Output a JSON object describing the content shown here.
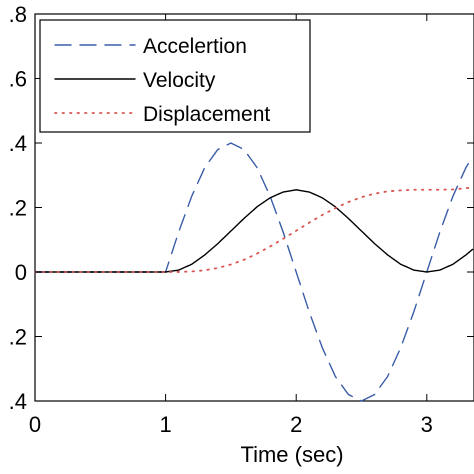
{
  "chart_data": {
    "type": "line",
    "xlabel": "Time (sec)",
    "ylabel": "",
    "xlim": [
      0,
      3.35
    ],
    "ylim": [
      -0.4,
      0.8
    ],
    "x_ticks": [
      0,
      1,
      2,
      3
    ],
    "x_tick_labels": [
      "0",
      "1",
      "2",
      "3"
    ],
    "y_ticks": [
      0.8,
      0.6,
      0.4,
      0.2,
      0,
      -0.2,
      -0.4
    ],
    "y_tick_labels": [
      ".8",
      ".6",
      ".4",
      ".2",
      "0",
      ".2",
      ".4"
    ],
    "grid": false,
    "legend_position": "top-left",
    "series": [
      {
        "name": "Accelertion",
        "color": "#3a5da8",
        "style": "dashed",
        "x": [
          0,
          0.5,
          1.0,
          1.1,
          1.2,
          1.3,
          1.4,
          1.5,
          1.6,
          1.7,
          1.8,
          1.9,
          2.0,
          2.1,
          2.2,
          2.3,
          2.4,
          2.5,
          2.6,
          2.7,
          2.8,
          2.9,
          3.0,
          3.1,
          3.2,
          3.3,
          3.35
        ],
        "y": [
          0,
          0,
          0,
          0.124,
          0.235,
          0.324,
          0.38,
          0.4,
          0.38,
          0.324,
          0.235,
          0.124,
          0,
          -0.124,
          -0.235,
          -0.324,
          -0.38,
          -0.4,
          -0.38,
          -0.324,
          -0.235,
          -0.124,
          0,
          0.124,
          0.235,
          0.324,
          0.357
        ]
      },
      {
        "name": "Velocity",
        "color": "#000000",
        "style": "solid",
        "x": [
          0,
          0.5,
          1.0,
          1.1,
          1.2,
          1.3,
          1.4,
          1.5,
          1.6,
          1.7,
          1.8,
          1.9,
          2.0,
          2.1,
          2.2,
          2.3,
          2.4,
          2.5,
          2.6,
          2.7,
          2.8,
          2.9,
          3.0,
          3.1,
          3.2,
          3.3,
          3.35
        ],
        "y": [
          0,
          0,
          0,
          0.006,
          0.024,
          0.053,
          0.088,
          0.127,
          0.166,
          0.202,
          0.23,
          0.248,
          0.255,
          0.248,
          0.23,
          0.202,
          0.166,
          0.127,
          0.088,
          0.053,
          0.024,
          0.006,
          0,
          0.006,
          0.024,
          0.053,
          0.07
        ]
      },
      {
        "name": "Displacement",
        "color": "#d9534f",
        "style": "dotted",
        "x": [
          0,
          0.5,
          1.0,
          1.1,
          1.2,
          1.3,
          1.4,
          1.5,
          1.6,
          1.7,
          1.8,
          1.9,
          2.0,
          2.1,
          2.2,
          2.3,
          2.4,
          2.5,
          2.6,
          2.7,
          2.8,
          2.9,
          3.0,
          3.1,
          3.2,
          3.3,
          3.35
        ],
        "y": [
          0,
          0,
          0,
          0.0002,
          0.0016,
          0.0054,
          0.0125,
          0.0233,
          0.038,
          0.057,
          0.079,
          0.103,
          0.128,
          0.153,
          0.177,
          0.198,
          0.217,
          0.232,
          0.243,
          0.25,
          0.253,
          0.255,
          0.255,
          0.255,
          0.256,
          0.26,
          0.262
        ]
      }
    ]
  }
}
